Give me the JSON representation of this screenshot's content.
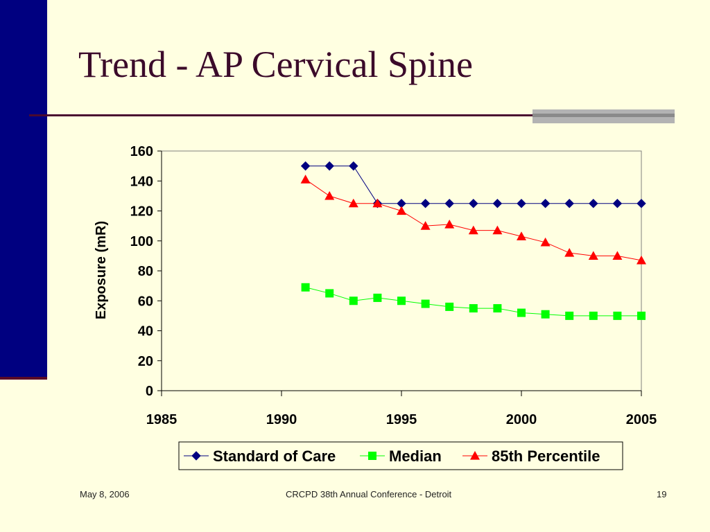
{
  "slide": {
    "title": "Trend - AP Cervical Spine",
    "footer": {
      "date": "May 8, 2006",
      "center": "CRCPD 38th Annual Conference - Detroit",
      "page": "19"
    }
  },
  "colors": {
    "background": "#FFFFE1",
    "left_bar": "#000080",
    "title": "#3B0A2A",
    "standard_of_care": "#000080",
    "median": "#00FF00",
    "percentile_85": "#FF0000"
  },
  "chart_data": {
    "type": "line",
    "title": "",
    "xlabel": "",
    "ylabel": "Exposure (mR)",
    "xlim": [
      1985,
      2005
    ],
    "ylim": [
      0,
      160
    ],
    "xticks": [
      1985,
      1990,
      1995,
      2000,
      2005
    ],
    "yticks": [
      0,
      20,
      40,
      60,
      80,
      100,
      120,
      140,
      160
    ],
    "grid": false,
    "legend_position": "bottom",
    "series": [
      {
        "name": "Standard of Care",
        "marker": "diamond",
        "color": "#000080",
        "x": [
          1991,
          1992,
          1993,
          1994,
          1995,
          1996,
          1997,
          1998,
          1999,
          2000,
          2001,
          2002,
          2003,
          2004,
          2005
        ],
        "y": [
          150,
          150,
          150,
          125,
          125,
          125,
          125,
          125,
          125,
          125,
          125,
          125,
          125,
          125,
          125
        ]
      },
      {
        "name": "Median",
        "marker": "square",
        "color": "#00FF00",
        "x": [
          1991,
          1992,
          1993,
          1994,
          1995,
          1996,
          1997,
          1998,
          1999,
          2000,
          2001,
          2002,
          2003,
          2004,
          2005
        ],
        "y": [
          69,
          65,
          60,
          62,
          60,
          58,
          56,
          55,
          55,
          52,
          51,
          50,
          50,
          50,
          50
        ]
      },
      {
        "name": "85th Percentile",
        "marker": "triangle",
        "color": "#FF0000",
        "x": [
          1991,
          1992,
          1993,
          1994,
          1995,
          1996,
          1997,
          1998,
          1999,
          2000,
          2001,
          2002,
          2003,
          2004,
          2005
        ],
        "y": [
          141,
          130,
          125,
          125,
          120,
          110,
          111,
          107,
          107,
          103,
          99,
          92,
          90,
          90,
          87
        ]
      }
    ]
  }
}
